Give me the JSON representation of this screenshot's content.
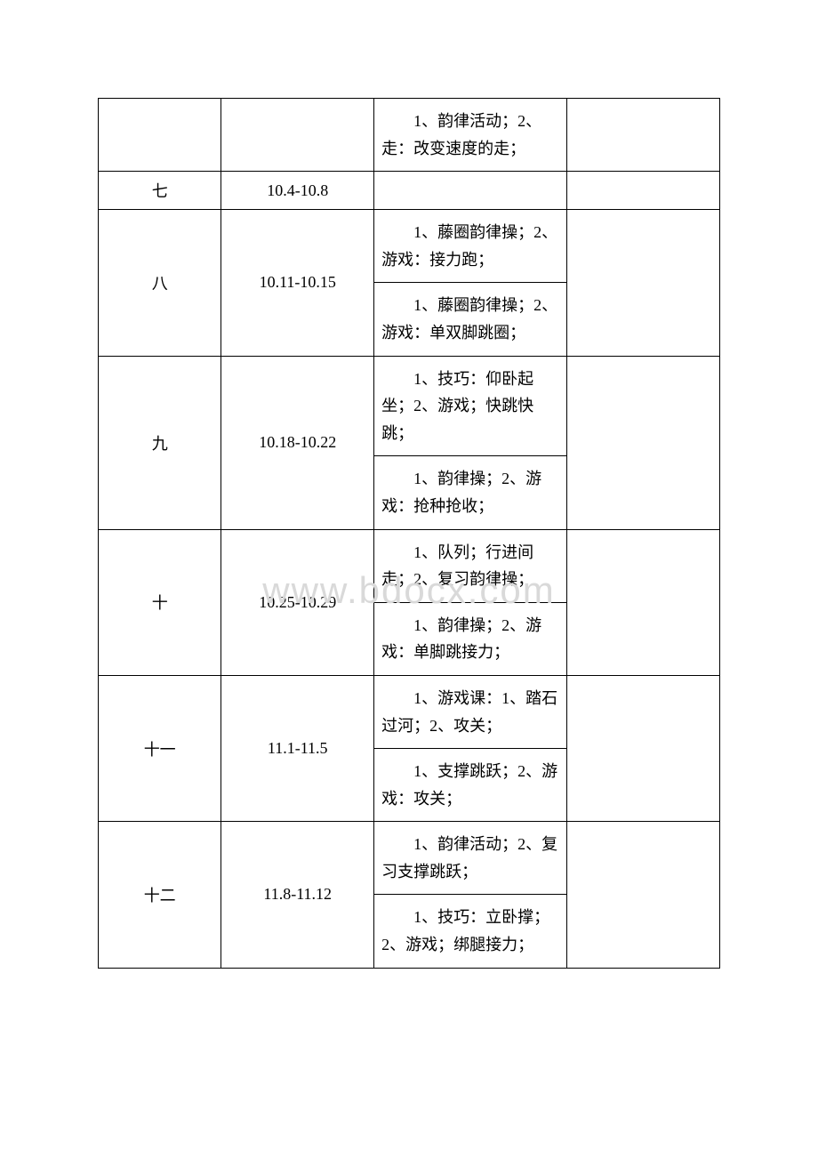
{
  "watermark": "www.bdocx.com",
  "table": {
    "columns": {
      "week_width": 137,
      "date_width": 170,
      "content_width": 215,
      "blank_width": 170
    },
    "border_color": "#000000",
    "background_color": "#ffffff",
    "text_color": "#000000",
    "watermark_color": "#d9d9d9",
    "font_size": 18,
    "watermark_fontsize": 42,
    "rows": [
      {
        "week": "",
        "date": "",
        "contents": [
          "　　1、韵律活动；2、走：改变速度的走；"
        ],
        "merge_week_date": false
      },
      {
        "week": "七",
        "date": "10.4-10.8",
        "contents": [
          ""
        ],
        "merge_week_date": false
      },
      {
        "week": "八",
        "date": "10.11-10.15",
        "contents": [
          "　　1、藤圈韵律操；2、游戏：接力跑；",
          "　　1、藤圈韵律操；2、游戏：单双脚跳圈；"
        ]
      },
      {
        "week": "九",
        "date": "10.18-10.22",
        "contents": [
          "　　1、技巧：仰卧起坐；2、游戏；快跳快跳；",
          "　　1、韵律操；2、游戏：抢种抢收；"
        ]
      },
      {
        "week": "十",
        "date": "10.25-10.29",
        "contents": [
          "　　1、队列；行进间走；2、复习韵律操；",
          "　　1、韵律操；2、游戏：单脚跳接力；"
        ]
      },
      {
        "week": "十一",
        "date": "11.1-11.5",
        "contents": [
          "　　1、游戏课：1、踏石过河；2、攻关；",
          "　　1、支撑跳跃；2、游戏：攻关；"
        ]
      },
      {
        "week": "十二",
        "date": "11.8-11.12",
        "contents": [
          "　　1、韵律活动；2、复习支撑跳跃；",
          "　　1、技巧：立卧撑；2、游戏；绑腿接力；"
        ]
      }
    ]
  }
}
